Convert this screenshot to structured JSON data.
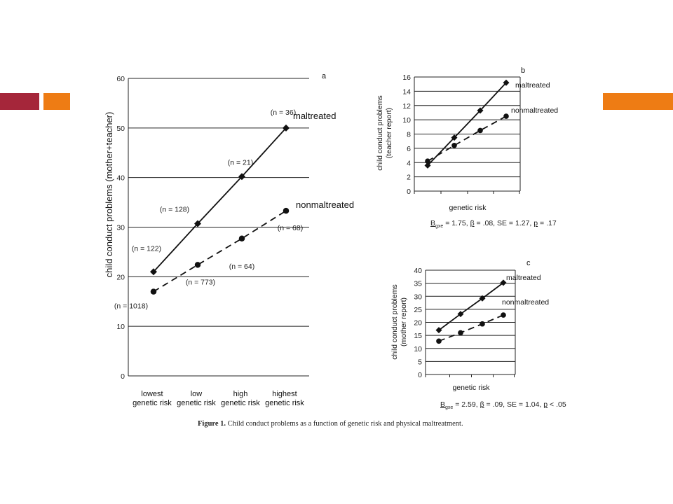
{
  "slide": {
    "accent_colors": {
      "red": "#a5263a",
      "orange": "#ee7c14"
    }
  },
  "caption": {
    "label": "Figure 1.",
    "text": "Child conduct problems as a function of genetic risk and physical maltreatment."
  },
  "chart_data": [
    {
      "panel": "a",
      "type": "line",
      "ylabel": "child conduct problems (mother+teacher)",
      "xlabel": "",
      "categories": [
        "lowest genetic risk",
        "low genetic risk",
        "high genetic risk",
        "highest genetic risk"
      ],
      "category_lines": [
        [
          "lowest",
          "genetic risk"
        ],
        [
          "low",
          "genetic risk"
        ],
        [
          "high",
          "genetic risk"
        ],
        [
          "highest",
          "genetic risk"
        ]
      ],
      "ylim": [
        0,
        60
      ],
      "yticks": [
        0,
        10,
        20,
        30,
        40,
        50,
        60
      ],
      "grid": true,
      "series": [
        {
          "name": "maltreated",
          "style": "solid",
          "marker": "diamond",
          "values": [
            21,
            30.7,
            40.2,
            50
          ],
          "n_labels": [
            "(n = 122)",
            "(n = 128)",
            "(n = 21)",
            "(n = 36)"
          ]
        },
        {
          "name": "nonmaltreated",
          "style": "dashed",
          "marker": "circle",
          "values": [
            17,
            22.4,
            27.7,
            33.3
          ],
          "n_labels": [
            "(n = 1018)",
            "(n = 773)",
            "(n = 64)",
            "(n = 68)"
          ]
        }
      ]
    },
    {
      "panel": "b",
      "type": "line",
      "ylabel_lines": [
        "child conduct problems",
        "(teacher report)"
      ],
      "xlabel": "genetic risk",
      "ylim": [
        0,
        16
      ],
      "yticks": [
        0,
        2,
        4,
        6,
        8,
        10,
        12,
        14,
        16
      ],
      "grid": true,
      "series": [
        {
          "name": "maltreated",
          "style": "solid",
          "marker": "diamond",
          "values": [
            3.6,
            7.5,
            11.3,
            15.2
          ]
        },
        {
          "name": "nonmaltreated",
          "style": "dashed",
          "marker": "circle",
          "values": [
            4.2,
            6.4,
            8.5,
            10.5
          ]
        }
      ],
      "stats": {
        "b_prefix": "B",
        "b_sub": "gxe",
        "b_rest": " = 1.75, ",
        "beta": "β",
        "beta_rest": " = .08, SE = 1.27, ",
        "p": "p",
        "p_rest": " = .17"
      }
    },
    {
      "panel": "c",
      "type": "line",
      "ylabel_lines": [
        "child conduct problems",
        "(mother report)"
      ],
      "xlabel": "genetic risk",
      "ylim": [
        0,
        40
      ],
      "yticks": [
        0,
        5,
        10,
        15,
        20,
        25,
        30,
        35,
        40
      ],
      "grid": true,
      "series": [
        {
          "name": "maltreated",
          "style": "solid",
          "marker": "diamond",
          "values": [
            17,
            23.2,
            29.2,
            35.2
          ]
        },
        {
          "name": "nonmaltreated",
          "style": "dashed",
          "marker": "circle",
          "values": [
            12.8,
            16,
            19.4,
            22.8
          ]
        }
      ],
      "stats": {
        "b_prefix": "B",
        "b_sub": "gxe",
        "b_rest": " = 2.59, ",
        "beta": "β",
        "beta_rest": " = .09, SE = 1.04, ",
        "p": "p",
        "p_rest": " < .05"
      }
    }
  ]
}
